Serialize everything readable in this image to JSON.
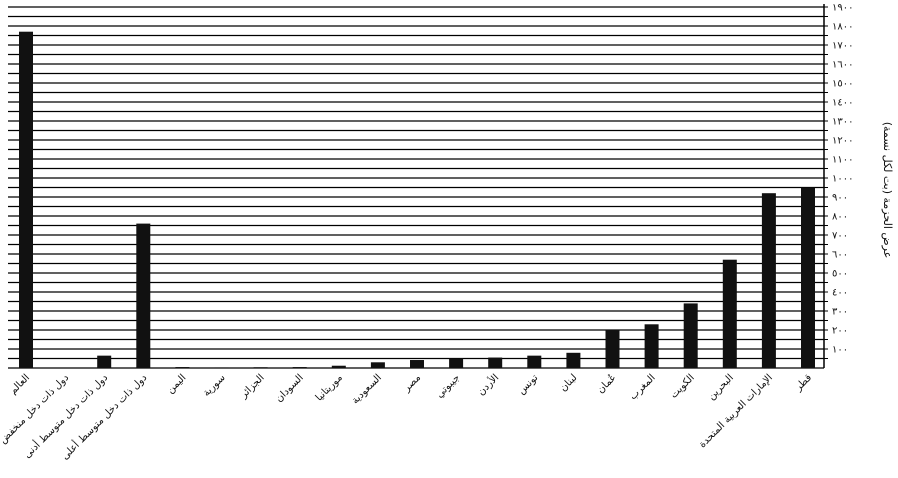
{
  "chart_data": {
    "type": "bar",
    "ylabel": "عرض الحزمة (بت لكل نسمة)",
    "ylim": [
      0,
      1900
    ],
    "yticks": [
      "١٠٠",
      "٢٠٠",
      "٣٠٠",
      "٤٠٠",
      "٥٠٠",
      "٦٠٠",
      "٧٠٠",
      "٨٠٠",
      "٩٠٠",
      "١٠٠٠",
      "١١٠٠",
      "١٢٠٠",
      "١٣٠٠",
      "١٤٠٠",
      "١٥٠٠",
      "١٦٠٠",
      "١٧٠٠",
      "١٨٠٠",
      "١٩٠٠"
    ],
    "ytick_values": [
      100,
      200,
      300,
      400,
      500,
      600,
      700,
      800,
      900,
      1000,
      1100,
      1200,
      1300,
      1400,
      1500,
      1600,
      1700,
      1800,
      1900
    ],
    "categories": [
      "قطر",
      "الإمارات العربية المتحدة",
      "البحرين",
      "الكويت",
      "المغرب",
      "عُمان",
      "لبنان",
      "تونس",
      "الأردن",
      "جيبوتي",
      "مصر",
      "السعودية",
      "موريتانيا",
      "السودان",
      "الجزائر",
      "سورية",
      "اليمن",
      "دول ذات دخل متوسط أعلى",
      "دول ذات دخل متوسط أدنى",
      "دول ذات دخل منخفض",
      "العالم"
    ],
    "values": [
      950,
      920,
      570,
      340,
      230,
      200,
      80,
      65,
      55,
      50,
      42,
      30,
      12,
      5,
      4,
      3,
      5,
      760,
      65,
      0,
      1770
    ],
    "grid": true,
    "grid_axis": "y",
    "y_axis_side": "right"
  }
}
